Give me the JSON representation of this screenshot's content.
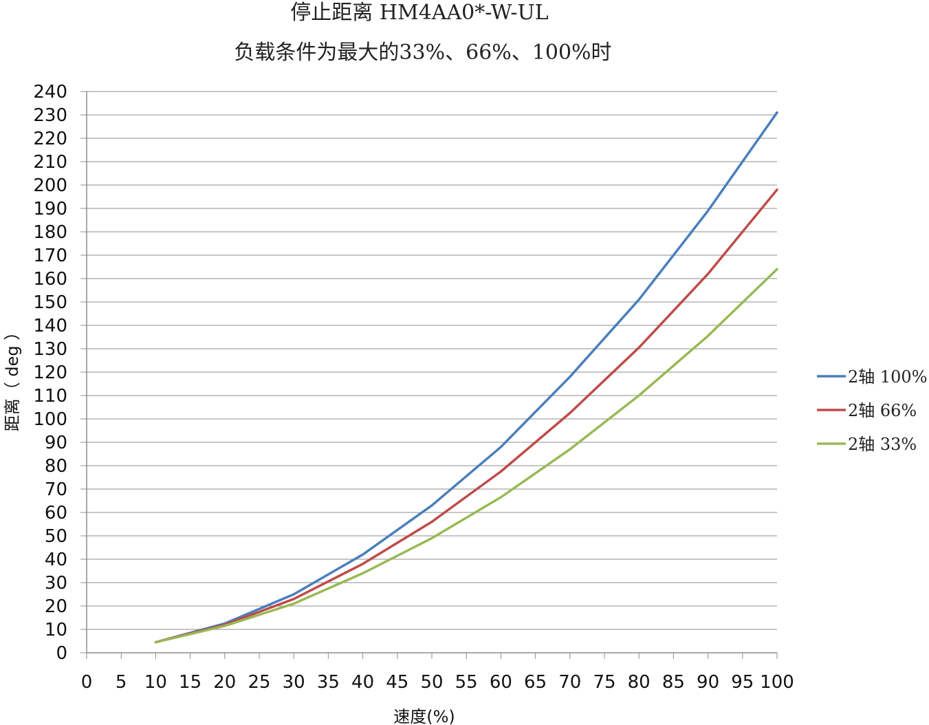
{
  "chart_data": {
    "type": "line",
    "title": "停止距离 HM4AA0*-W-UL",
    "subtitle": "负载条件为最大的33%、66%、100%时",
    "xlabel": "速度(%)",
    "ylabel": "距离（ deg ）",
    "xlim": [
      0,
      100
    ],
    "ylim": [
      0,
      240
    ],
    "x_ticks": [
      "0",
      "5",
      "10",
      "15",
      "20",
      "25",
      "30",
      "35",
      "40",
      "45",
      "50",
      "55",
      "60",
      "65",
      "70",
      "75",
      "80",
      "85",
      "90",
      "95",
      "100"
    ],
    "y_ticks": [
      "0",
      "10",
      "20",
      "30",
      "40",
      "50",
      "60",
      "70",
      "80",
      "90",
      "100",
      "110",
      "120",
      "130",
      "140",
      "150",
      "160",
      "170",
      "180",
      "190",
      "200",
      "210",
      "220",
      "230",
      "240"
    ],
    "grid": true,
    "legend_position": "right",
    "x": [
      10,
      20,
      30,
      40,
      50,
      60,
      70,
      80,
      90,
      100
    ],
    "series": [
      {
        "name": "2轴 100%",
        "color": "#4A7EBB",
        "values": [
          4.5,
          12.5,
          25,
          42,
          63,
          88,
          118,
          151,
          189,
          231
        ]
      },
      {
        "name": "2轴 66%",
        "color": "#BE4B48",
        "values": [
          4.5,
          12,
          23,
          38,
          56,
          77.5,
          102.5,
          130.5,
          162,
          198
        ]
      },
      {
        "name": "2轴 33%",
        "color": "#98B954",
        "values": [
          4.5,
          11.5,
          21,
          34,
          49,
          66.5,
          87,
          110,
          135.5,
          164
        ]
      }
    ]
  }
}
